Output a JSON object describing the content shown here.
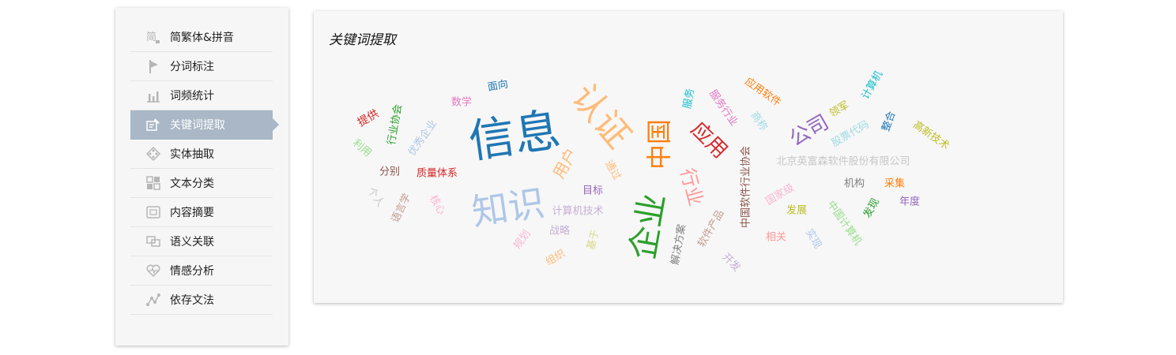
{
  "sidebar": {
    "items": [
      {
        "id": "simplified",
        "label": "简繁体&拼音",
        "icon": "simplified-char-icon",
        "active": false
      },
      {
        "id": "segment",
        "label": "分词标注",
        "icon": "flag-icon",
        "active": false
      },
      {
        "id": "frequency",
        "label": "词频统计",
        "icon": "bar-chart-icon",
        "active": false
      },
      {
        "id": "keywords",
        "label": "关键词提取",
        "icon": "keyword-extract-icon",
        "active": true
      },
      {
        "id": "entity",
        "label": "实体抽取",
        "icon": "entity-icon",
        "active": false
      },
      {
        "id": "classify",
        "label": "文本分类",
        "icon": "grid-icon",
        "active": false
      },
      {
        "id": "summary",
        "label": "内容摘要",
        "icon": "summary-icon",
        "active": false
      },
      {
        "id": "semantic",
        "label": "语义关联",
        "icon": "link-icon",
        "active": false
      },
      {
        "id": "sentiment",
        "label": "情感分析",
        "icon": "heart-icon",
        "active": false
      },
      {
        "id": "dependency",
        "label": "依存文法",
        "icon": "dependency-icon",
        "active": false
      }
    ]
  },
  "panel": {
    "title": "关键词提取",
    "words": [
      {
        "text": "信息",
        "color": "#1f77b4"
      },
      {
        "text": "知识",
        "color": "#aec7e8"
      },
      {
        "text": "认证",
        "color": "#ffbb78"
      },
      {
        "text": "企业",
        "color": "#2ca02c"
      },
      {
        "text": "中国",
        "color": "#ff7f0e"
      },
      {
        "text": "应用",
        "color": "#d62728"
      },
      {
        "text": "行业",
        "color": "#ff9896"
      },
      {
        "text": "公司",
        "color": "#9467bd"
      },
      {
        "text": "用户",
        "color": "#ffbb78"
      },
      {
        "text": "北京英富森软件股份有限公司",
        "color": "#c7c7c7"
      },
      {
        "text": "提供",
        "color": "#d62728"
      },
      {
        "text": "行业协会",
        "color": "#2ca02c"
      },
      {
        "text": "优秀企业",
        "color": "#aec7e8"
      },
      {
        "text": "数学",
        "color": "#e377c2"
      },
      {
        "text": "面向",
        "color": "#1f77b4"
      },
      {
        "text": "利用",
        "color": "#98df8a"
      },
      {
        "text": "分别",
        "color": "#8c564b"
      },
      {
        "text": "质量体系",
        "color": "#d62728"
      },
      {
        "text": "个人",
        "color": "#c7c7c7"
      },
      {
        "text": "语言学",
        "color": "#c49c94"
      },
      {
        "text": "核心",
        "color": "#f7b6d2"
      },
      {
        "text": "规划",
        "color": "#f7b6d2"
      },
      {
        "text": "组织",
        "color": "#ffbb78"
      },
      {
        "text": "战略",
        "color": "#c5b0d5"
      },
      {
        "text": "基于",
        "color": "#dbdb8d"
      },
      {
        "text": "计算机技术",
        "color": "#c5b0d5"
      },
      {
        "text": "目标",
        "color": "#9467bd"
      },
      {
        "text": "通过",
        "color": "#ffbb78"
      },
      {
        "text": "服务",
        "color": "#17becf"
      },
      {
        "text": "服务行业",
        "color": "#e377c2"
      },
      {
        "text": "商称",
        "color": "#9edae5"
      },
      {
        "text": "应用软件",
        "color": "#ff7f0e"
      },
      {
        "text": "领军",
        "color": "#bcbd22"
      },
      {
        "text": "计算机",
        "color": "#17becf"
      },
      {
        "text": "股票代码",
        "color": "#9edae5"
      },
      {
        "text": "整合",
        "color": "#1f77b4"
      },
      {
        "text": "高新技术",
        "color": "#bcbd22"
      },
      {
        "text": "中国软件行业协会",
        "color": "#8c564b"
      },
      {
        "text": "国家级",
        "color": "#f7b6d2"
      },
      {
        "text": "机构",
        "color": "#7f7f7f"
      },
      {
        "text": "采集",
        "color": "#ff7f0e"
      },
      {
        "text": "发展",
        "color": "#bcbd22"
      },
      {
        "text": "中国计算机",
        "color": "#98df8a"
      },
      {
        "text": "发现",
        "color": "#2ca02c"
      },
      {
        "text": "年度",
        "color": "#9467bd"
      },
      {
        "text": "软件产品",
        "color": "#c49c94"
      },
      {
        "text": "解决方案",
        "color": "#7f7f7f"
      },
      {
        "text": "开发",
        "color": "#c5b0d5"
      },
      {
        "text": "相关",
        "color": "#ff9896"
      },
      {
        "text": "实现",
        "color": "#aec7e8"
      }
    ]
  }
}
